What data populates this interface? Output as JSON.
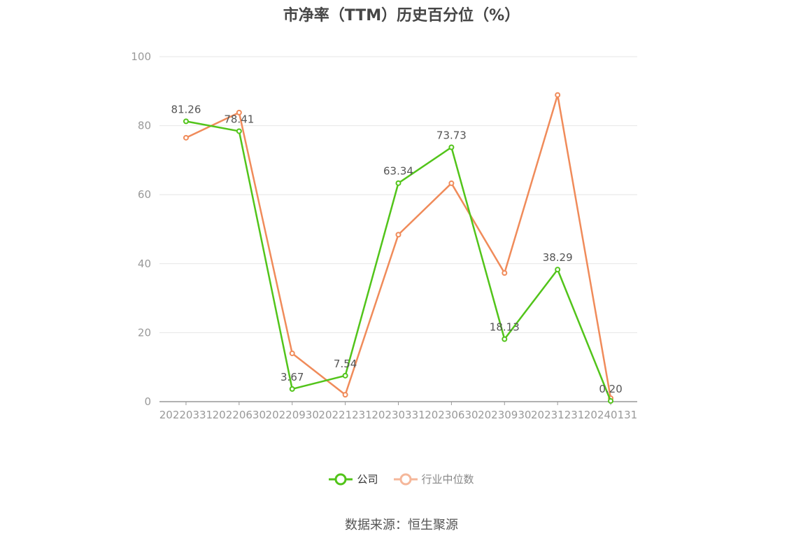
{
  "chart_data": {
    "type": "line",
    "title": "市净率（TTM）历史百分位（%）",
    "categories": [
      "20220331",
      "20220630",
      "20220930",
      "20221231",
      "20230331",
      "20230630",
      "20230930",
      "20231231",
      "20240131"
    ],
    "yticks": [
      "0",
      "20",
      "40",
      "60",
      "80",
      "100"
    ],
    "ylim": [
      0,
      100
    ],
    "grid": true,
    "legend_position": "bottom",
    "series": [
      {
        "name": "公司",
        "color": "#52c41a",
        "values": [
          81.26,
          78.41,
          3.67,
          7.54,
          63.34,
          73.73,
          18.13,
          38.29,
          0.2
        ],
        "labels": [
          "81.26",
          "78.41",
          "3.67",
          "7.54",
          "63.34",
          "73.73",
          "18.13",
          "38.29",
          "0.20"
        ]
      },
      {
        "name": "行业中位数",
        "color": "#f08b5a",
        "legend_color": "#f5b79a",
        "values": [
          76.5,
          83.8,
          14.0,
          2.0,
          48.4,
          63.3,
          37.3,
          88.9,
          1.0
        ]
      }
    ]
  },
  "source_text": "数据来源：恒生聚源"
}
